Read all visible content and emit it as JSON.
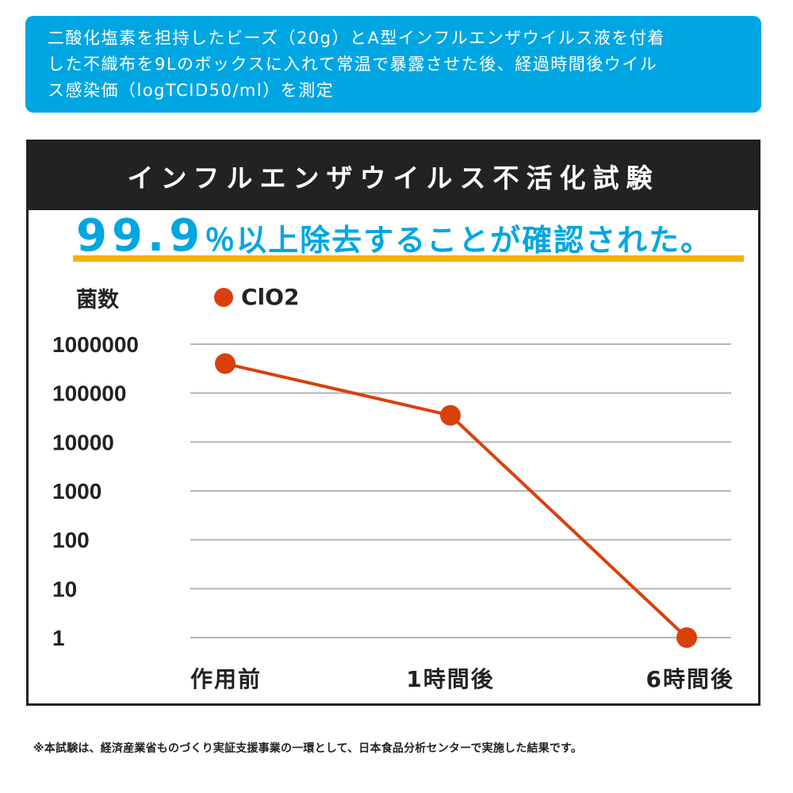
{
  "info": {
    "lines": [
      "二酸化塩素を担持したビーズ（20g）とA型インフルエンザウイルス液を付着",
      "した不織布を9Lのボックスに入れて常温で暴露させた後、経過時間後ウイル",
      "ス感染価（logTCID50/ml）を測定"
    ]
  },
  "chart_data": {
    "type": "line",
    "title": "インフルエンザウイルス不活化試験",
    "headline": {
      "number": "99.9",
      "rest": "％以上除去することが確認された。"
    },
    "ylabel": "菌数",
    "xlabel": "",
    "y_scale": "log",
    "ylim": [
      1,
      1000000
    ],
    "y_ticks": [
      "1000000",
      "100000",
      "10000",
      "1000",
      "100",
      "10",
      "1"
    ],
    "categories": [
      "作用前",
      "1時間後",
      "6時間後"
    ],
    "series": [
      {
        "name": "ClO2",
        "values": [
          400000,
          35000,
          1
        ],
        "color": "#d9400b"
      }
    ],
    "grid": true,
    "legend_position": "top-left"
  },
  "footnote": "※本試験は、経済産業省ものづくり実証支援事業の一環として、日本食品分析センターで実施した結果です。",
  "colors": {
    "accent": "#00a6e2",
    "highlight": "#f3b200",
    "header": "#222222",
    "series": "#d9400b",
    "grid": "#b4b4b4"
  }
}
